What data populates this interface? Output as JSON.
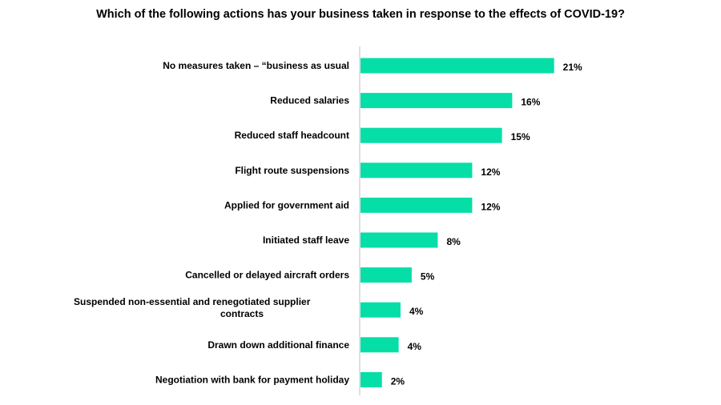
{
  "chart_data": {
    "type": "bar",
    "orientation": "horizontal",
    "title": "Which of the following actions has your business taken in response to the effects of COVID-19?",
    "categories": [
      [
        "No measures taken – “business as usual"
      ],
      [
        "Reduced salaries"
      ],
      [
        "Reduced staff headcount"
      ],
      [
        "Flight route suspensions"
      ],
      [
        "Applied for government aid"
      ],
      [
        "Initiated staff leave"
      ],
      [
        "Cancelled or delayed aircraft orders"
      ],
      [
        "Suspended non-essential and renegotiated supplier",
        "contracts"
      ],
      [
        "Drawn down additional finance"
      ],
      [
        "Negotiation with bank for payment holiday"
      ]
    ],
    "values": [
      21,
      16,
      15,
      12,
      12,
      8,
      5,
      4,
      4,
      2
    ],
    "value_labels": [
      "21%",
      "16%",
      "15%",
      "12%",
      "12%",
      "8%",
      "5%",
      "4%",
      "4%",
      "2%"
    ],
    "bar_values": [
      20.8,
      16.3,
      15.2,
      12.0,
      12.0,
      8.3,
      5.5,
      4.3,
      4.1,
      2.3
    ],
    "xlim": [
      0,
      21
    ],
    "grid": false,
    "bar_color": "#06dea8",
    "axis_color": "#bfbfbf"
  }
}
